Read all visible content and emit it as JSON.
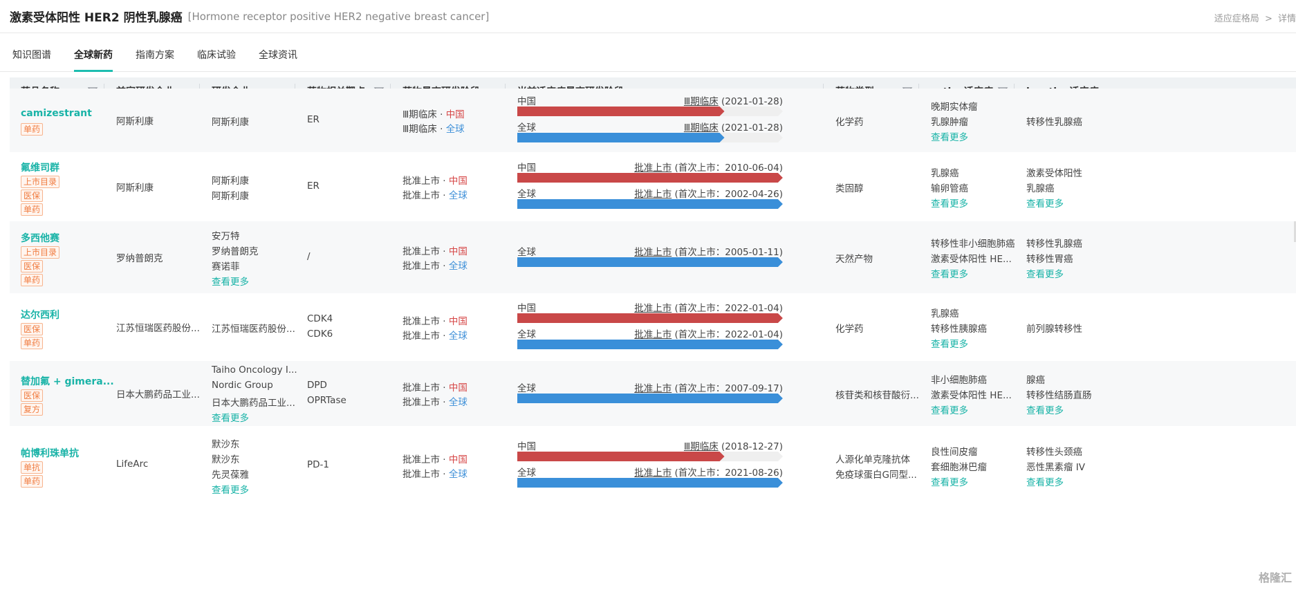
{
  "header": {
    "title": "激素受体阳性 HER2 阴性乳腺癌",
    "subtitle": "[Hormone receptor positive HER2 negative breast cancer]",
    "breadcrumb": [
      "适应症格局",
      ">",
      "详情"
    ]
  },
  "tabs": [
    "知识图谱",
    "全球新药",
    "指南方案",
    "临床试验",
    "全球资讯"
  ],
  "active_tab": "全球新药",
  "columns": [
    "药品名称",
    "首家研发企业",
    "研发企业",
    "药物相关靶点",
    "药物最高研发阶段",
    "当前适应症最高研发阶段",
    "药物类型",
    "active适应症",
    "inactive适应症"
  ],
  "colors": {
    "accent": "#1dbdb0",
    "china_bar": "#c94848",
    "global_bar": "#3a8fd9",
    "tag": "#f07b3f"
  },
  "rows": [
    {
      "name": "camizestrant",
      "tags": [
        "单药"
      ],
      "first_company": "阿斯利康",
      "companies": [
        "阿斯利康"
      ],
      "companies_more": "",
      "targets": [
        "ER"
      ],
      "highest_stage": [
        {
          "stage": "Ⅲ期临床",
          "sep": " · ",
          "region": "中国",
          "color": "red"
        },
        {
          "stage": "Ⅲ期临床",
          "sep": " · ",
          "region": "全球",
          "color": "blue"
        }
      ],
      "bars": [
        {
          "region": "中国",
          "stage": "Ⅲ期临床",
          "detail": "(2021-01-28)",
          "progress": 0.78,
          "color": "red"
        },
        {
          "region": "全球",
          "stage": "Ⅲ期临床",
          "detail": "(2021-01-28)",
          "progress": 0.78,
          "color": "blue"
        }
      ],
      "drug_type": [
        "化学药"
      ],
      "active": [
        "晚期实体瘤",
        "乳腺肿瘤"
      ],
      "active_more": "查看更多",
      "inactive": [
        "转移性乳腺癌"
      ],
      "inactive_more": ""
    },
    {
      "name": "氟维司群",
      "tags": [
        "上市目录",
        "医保",
        "单药"
      ],
      "first_company": "阿斯利康",
      "companies": [
        "阿斯利康",
        "阿斯利康"
      ],
      "companies_more": "",
      "targets": [
        "ER"
      ],
      "highest_stage": [
        {
          "stage": "批准上市",
          "sep": " · ",
          "region": "中国",
          "color": "red"
        },
        {
          "stage": "批准上市",
          "sep": " · ",
          "region": "全球",
          "color": "blue"
        }
      ],
      "bars": [
        {
          "region": "中国",
          "stage": "批准上市",
          "detail": "(首次上市：2010-06-04)",
          "progress": 1,
          "color": "red"
        },
        {
          "region": "全球",
          "stage": "批准上市",
          "detail": "(首次上市：2002-04-26)",
          "progress": 1,
          "color": "blue"
        }
      ],
      "drug_type": [
        "类固醇"
      ],
      "active": [
        "乳腺癌",
        "输卵管癌"
      ],
      "active_more": "查看更多",
      "inactive": [
        "激素受体阳性",
        "乳腺癌"
      ],
      "inactive_more": "查看更多"
    },
    {
      "name": "多西他赛",
      "tags": [
        "上市目录",
        "医保",
        "单药"
      ],
      "first_company": "罗纳普朗克",
      "companies": [
        "安万特",
        "罗纳普朗克",
        "赛诺菲"
      ],
      "companies_more": "查看更多",
      "targets": [
        "/"
      ],
      "highest_stage": [
        {
          "stage": "批准上市",
          "sep": " · ",
          "region": "中国",
          "color": "red"
        },
        {
          "stage": "批准上市",
          "sep": " · ",
          "region": "全球",
          "color": "blue"
        }
      ],
      "bars": [
        {
          "region": "全球",
          "stage": "批准上市",
          "detail": "(首次上市：2005-01-11)",
          "progress": 1,
          "color": "blue"
        }
      ],
      "drug_type": [
        "天然产物"
      ],
      "active": [
        "转移性非小细胞肺癌",
        "激素受体阳性 HE..."
      ],
      "active_more": "查看更多",
      "inactive": [
        "转移性乳腺癌",
        "转移性胃癌"
      ],
      "inactive_more": "查看更多"
    },
    {
      "name": "达尔西利",
      "tags": [
        "医保",
        "单药"
      ],
      "first_company": "江苏恒瑞医药股份...",
      "companies": [
        "江苏恒瑞医药股份..."
      ],
      "companies_more": "",
      "targets": [
        "CDK4",
        "CDK6"
      ],
      "highest_stage": [
        {
          "stage": "批准上市",
          "sep": " · ",
          "region": "中国",
          "color": "red"
        },
        {
          "stage": "批准上市",
          "sep": " · ",
          "region": "全球",
          "color": "blue"
        }
      ],
      "bars": [
        {
          "region": "中国",
          "stage": "批准上市",
          "detail": "(首次上市：2022-01-04)",
          "progress": 1,
          "color": "red"
        },
        {
          "region": "全球",
          "stage": "批准上市",
          "detail": "(首次上市：2022-01-04)",
          "progress": 1,
          "color": "blue"
        }
      ],
      "drug_type": [
        "化学药"
      ],
      "active": [
        "乳腺癌",
        "转移性胰腺癌"
      ],
      "active_more": "查看更多",
      "inactive": [
        "前列腺转移性"
      ],
      "inactive_more": ""
    },
    {
      "name": "替加氟 + gimera...",
      "tags": [
        "医保",
        "复方"
      ],
      "first_company": "日本大鹏药品工业...",
      "companies": [
        "Taiho Oncology I...",
        "Nordic Group",
        "日本大鹏药品工业..."
      ],
      "companies_more": "查看更多",
      "targets": [
        "DPD",
        "OPRTase"
      ],
      "highest_stage": [
        {
          "stage": "批准上市",
          "sep": " · ",
          "region": "中国",
          "color": "red"
        },
        {
          "stage": "批准上市",
          "sep": " · ",
          "region": "全球",
          "color": "blue"
        }
      ],
      "bars": [
        {
          "region": "全球",
          "stage": "批准上市",
          "detail": "(首次上市：2007-09-17)",
          "progress": 1,
          "color": "blue"
        }
      ],
      "drug_type": [
        "核苷类和核苷酸衍..."
      ],
      "active": [
        "非小细胞肺癌",
        "激素受体阳性 HE..."
      ],
      "active_more": "查看更多",
      "inactive": [
        "腺癌",
        "转移性结肠直肠"
      ],
      "inactive_more": "查看更多"
    },
    {
      "name": "帕博利珠单抗",
      "tags": [
        "单抗",
        "单药"
      ],
      "first_company": "LifeArc",
      "companies": [
        "默沙东",
        "默沙东",
        "先灵葆雅"
      ],
      "companies_more": "查看更多",
      "targets": [
        "PD-1"
      ],
      "highest_stage": [
        {
          "stage": "批准上市",
          "sep": " · ",
          "region": "中国",
          "color": "red"
        },
        {
          "stage": "批准上市",
          "sep": " · ",
          "region": "全球",
          "color": "blue"
        }
      ],
      "bars": [
        {
          "region": "中国",
          "stage": "Ⅲ期临床",
          "detail": "(2018-12-27)",
          "progress": 0.78,
          "color": "red"
        },
        {
          "region": "全球",
          "stage": "批准上市",
          "detail": "(首次上市：2021-08-26)",
          "progress": 1,
          "color": "blue"
        }
      ],
      "drug_type": [
        "人源化单克隆抗体",
        "免疫球蛋白G同型..."
      ],
      "active": [
        "良性间皮瘤",
        "套细胞淋巴瘤"
      ],
      "active_more": "查看更多",
      "inactive": [
        "转移性头颈癌",
        "恶性黑素瘤 IV"
      ],
      "inactive_more": "查看更多"
    }
  ],
  "watermark": "格隆汇"
}
